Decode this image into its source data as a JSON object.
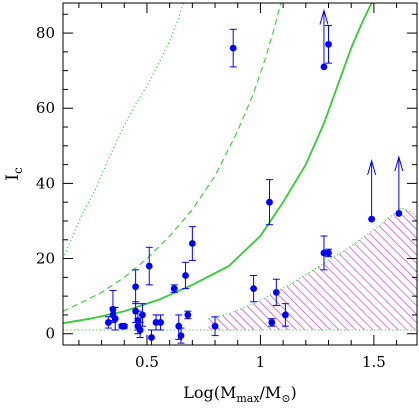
{
  "chart_data": {
    "type": "scatter",
    "title": "",
    "ylabel_main": "I",
    "ylabel_sub": "c",
    "xlabel_pre": "Log(M",
    "xlabel_sub1": "max",
    "xlabel_mid": "/M",
    "xlabel_sub2": "⊙",
    "xlabel_post": ")",
    "xlim": [
      0.13,
      1.69
    ],
    "ylim": [
      -3,
      88
    ],
    "x_ticks": [
      {
        "value": 0.5,
        "label": "0.5"
      },
      {
        "value": 1.0,
        "label": "1"
      },
      {
        "value": 1.5,
        "label": "1.5"
      }
    ],
    "y_ticks": [
      {
        "value": 0,
        "label": "0"
      },
      {
        "value": 20,
        "label": "20"
      },
      {
        "value": 40,
        "label": "40"
      },
      {
        "value": 60,
        "label": "60"
      },
      {
        "value": 80,
        "label": "80"
      }
    ],
    "colors": {
      "points": "#0000ff",
      "curves": "#33cc33",
      "hatch": "#cc33cc",
      "axes": "#000000"
    },
    "points": [
      {
        "x": 0.33,
        "y": 3.0,
        "lo": 1.5,
        "hi": 4.5
      },
      {
        "x": 0.35,
        "y": 5.0,
        "lo": 3.0,
        "hi": 7.0
      },
      {
        "x": 0.35,
        "y": 6.5,
        "lo": 3.5,
        "hi": 11.5
      },
      {
        "x": 0.36,
        "y": 4.0,
        "lo": 1.0,
        "hi": 7.0
      },
      {
        "x": 0.39,
        "y": 2.0,
        "lo": 1.5,
        "hi": 2.5
      },
      {
        "x": 0.4,
        "y": 2.0,
        "lo": 1.5,
        "hi": 2.5
      },
      {
        "x": 0.45,
        "y": 12.5,
        "lo": 8.0,
        "hi": 17.0
      },
      {
        "x": 0.45,
        "y": 6.0,
        "lo": 3.0,
        "hi": 8.5
      },
      {
        "x": 0.46,
        "y": 3.5,
        "lo": 1.0,
        "hi": 6.0
      },
      {
        "x": 0.46,
        "y": 2.0,
        "lo": 0.0,
        "hi": 4.0
      },
      {
        "x": 0.47,
        "y": 1.0,
        "lo": -1.0,
        "hi": 3.0
      },
      {
        "x": 0.48,
        "y": 5.0,
        "lo": 2.0,
        "hi": 8.0
      },
      {
        "x": 0.51,
        "y": 18.0,
        "lo": 13.0,
        "hi": 23.0
      },
      {
        "x": 0.52,
        "y": -1.0,
        "lo": -3.0,
        "hi": 1.0
      },
      {
        "x": 0.54,
        "y": 3.0,
        "lo": 1.0,
        "hi": 5.0
      },
      {
        "x": 0.56,
        "y": 3.0,
        "lo": 1.0,
        "hi": 5.0
      },
      {
        "x": 0.62,
        "y": 12.0,
        "lo": 11.0,
        "hi": 13.0
      },
      {
        "x": 0.64,
        "y": 2.0,
        "lo": -1.5,
        "hi": 5.0
      },
      {
        "x": 0.65,
        "y": -0.5,
        "lo": -2.5,
        "hi": 1.5
      },
      {
        "x": 0.67,
        "y": 15.5,
        "lo": 12.0,
        "hi": 19.0
      },
      {
        "x": 0.68,
        "y": 5.0,
        "lo": 4.0,
        "hi": 6.0
      },
      {
        "x": 0.7,
        "y": 24.0,
        "lo": 19.5,
        "hi": 28.5
      },
      {
        "x": 0.8,
        "y": 2.0,
        "lo": -0.5,
        "hi": 4.5
      },
      {
        "x": 0.88,
        "y": 76.0,
        "lo": 71.0,
        "hi": 81.0
      },
      {
        "x": 0.97,
        "y": 12.0,
        "lo": 8.5,
        "hi": 15.5
      },
      {
        "x": 1.04,
        "y": 35.0,
        "lo": 29.0,
        "hi": 41.0
      },
      {
        "x": 1.05,
        "y": 3.0,
        "lo": 2.0,
        "hi": 4.0
      },
      {
        "x": 1.07,
        "y": 11.0,
        "lo": 7.5,
        "hi": 14.5
      },
      {
        "x": 1.11,
        "y": 5.0,
        "lo": 2.0,
        "hi": 8.0
      },
      {
        "x": 1.28,
        "y": 21.5,
        "lo": 17.0,
        "hi": 26.0
      },
      {
        "x": 1.3,
        "y": 21.5,
        "lo": 20.5,
        "hi": 22.5
      },
      {
        "x": 1.28,
        "y": 71.0,
        "arrow_to": 86.0
      },
      {
        "x": 1.3,
        "y": 77.0,
        "lo": 72.0,
        "hi": 82.0
      },
      {
        "x": 1.49,
        "y": 30.5,
        "arrow_to": 46.0
      },
      {
        "x": 1.61,
        "y": 32.0,
        "arrow_to": 47.0
      }
    ],
    "curves": [
      {
        "style": "dotted",
        "x": [
          0.13,
          0.18,
          0.22,
          0.27,
          0.32,
          0.38,
          0.44,
          0.5,
          0.56,
          0.6,
          0.64,
          0.66
        ],
        "y": [
          20.0,
          27.0,
          32.5,
          38.0,
          45.0,
          53.0,
          60.0,
          66.0,
          73.0,
          78.0,
          84.0,
          88.0
        ]
      },
      {
        "style": "dashed",
        "x": [
          0.13,
          0.2,
          0.3,
          0.4,
          0.5,
          0.6,
          0.7,
          0.8,
          0.9,
          0.97,
          1.02,
          1.06,
          1.09
        ],
        "y": [
          6.0,
          8.0,
          11.0,
          15.0,
          20.0,
          26.0,
          33.0,
          42.0,
          54.0,
          64.0,
          73.0,
          81.0,
          88.0
        ]
      },
      {
        "style": "solid",
        "x": [
          0.13,
          0.25,
          0.4,
          0.55,
          0.7,
          0.86,
          1.0,
          1.1,
          1.2,
          1.28,
          1.34,
          1.4,
          1.45,
          1.49
        ],
        "y": [
          2.8,
          4.0,
          6.0,
          9.0,
          13.0,
          18.0,
          26.0,
          35.0,
          45.0,
          56.0,
          66.0,
          76.0,
          83.0,
          88.0
        ]
      }
    ],
    "hatch_region": {
      "upper_x": [
        0.77,
        0.87,
        0.97,
        1.05,
        1.14,
        1.22,
        1.3,
        1.38,
        1.45,
        1.52,
        1.58,
        1.62,
        1.66,
        1.69
      ],
      "upper_y": [
        4.0,
        5.5,
        8.0,
        10.5,
        13.5,
        16.5,
        19.5,
        22.5,
        25.5,
        28.5,
        31.5,
        33.5,
        32.5,
        31.0
      ],
      "floor_y": 1.0
    }
  }
}
